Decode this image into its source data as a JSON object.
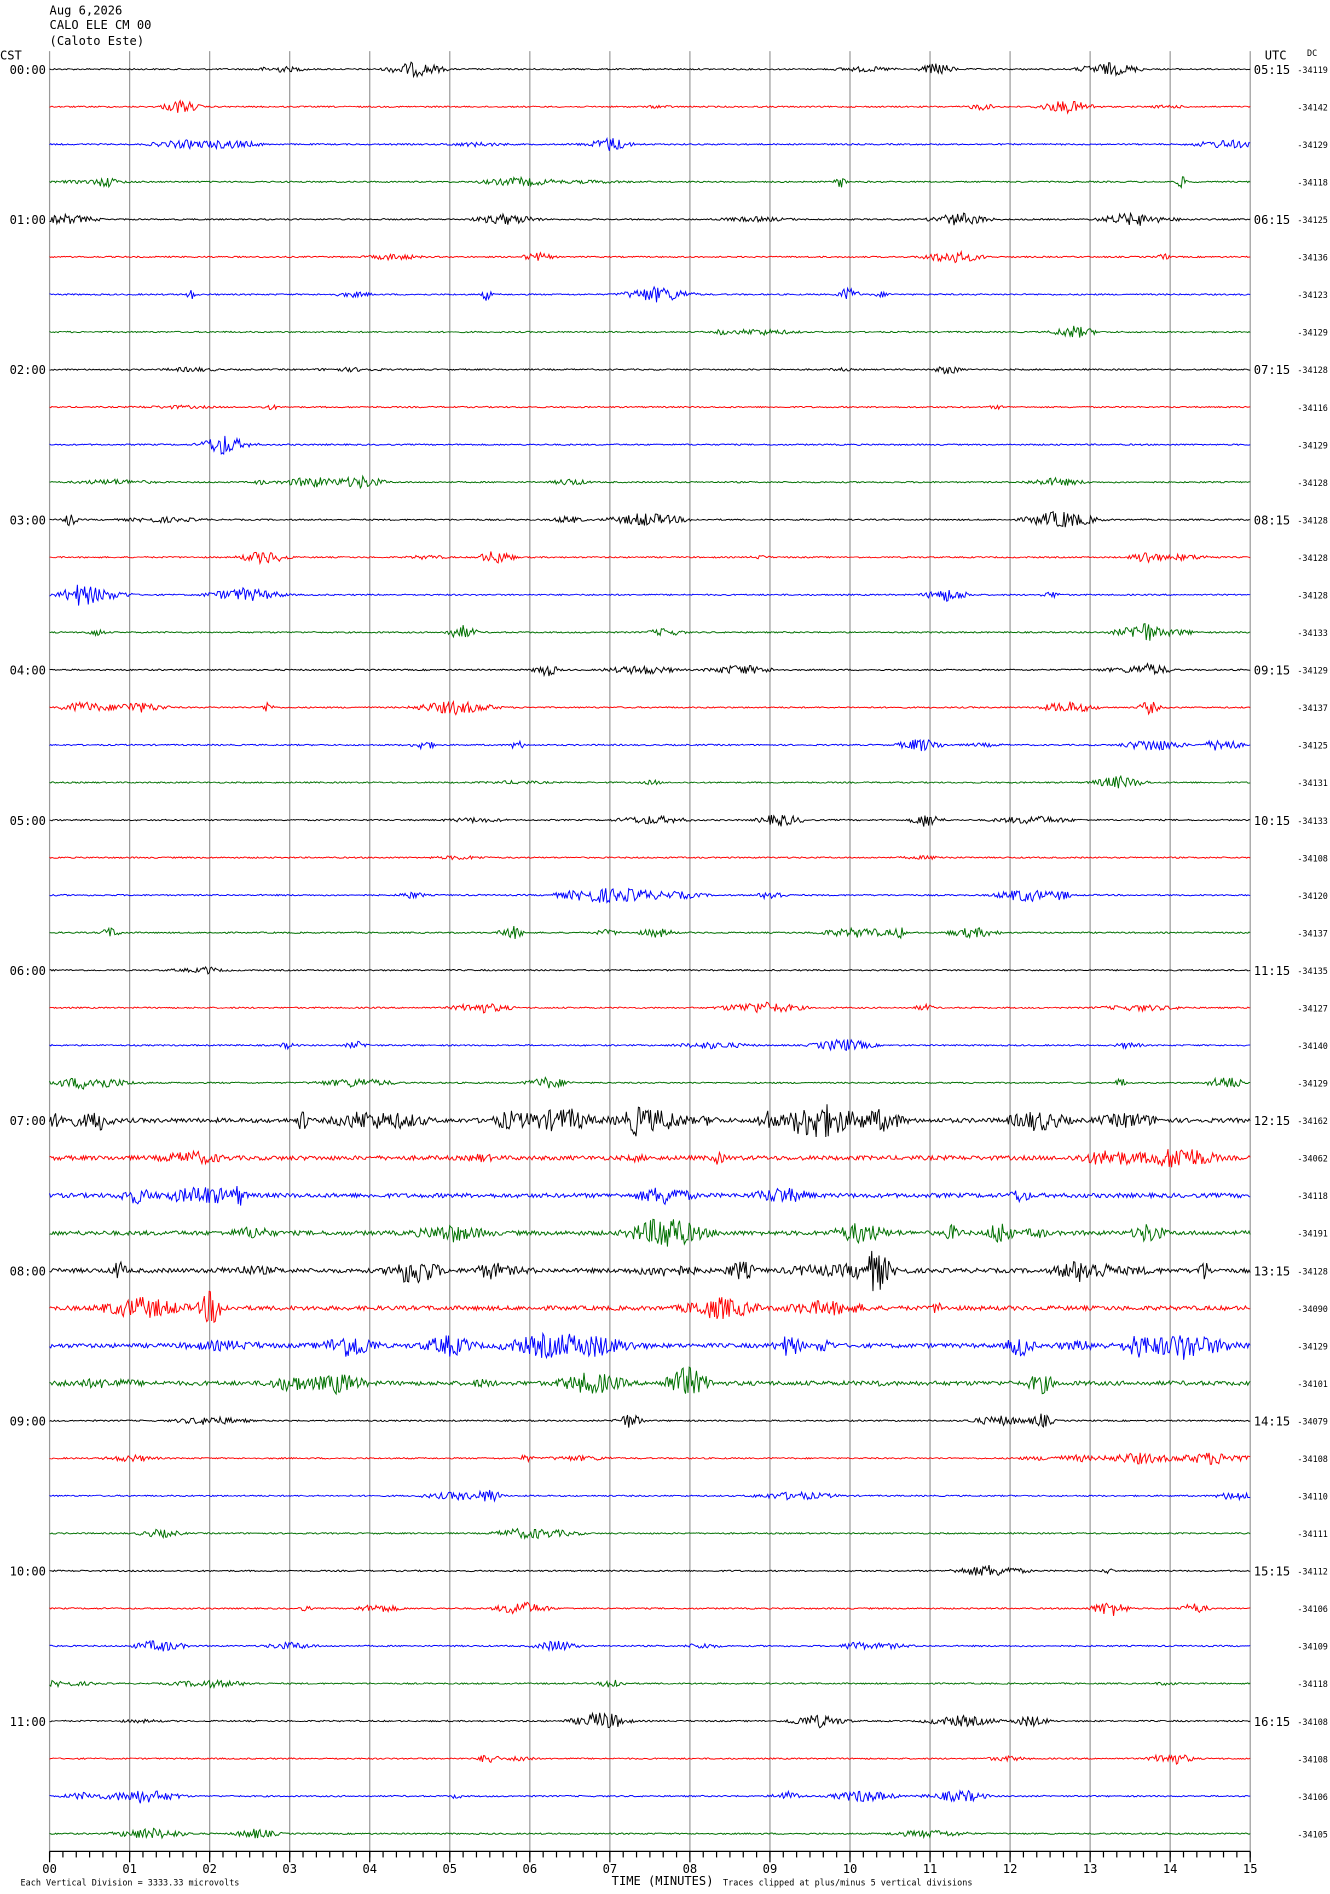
{
  "chart_data": {
    "type": "helicorder",
    "title_lines": [
      "Aug 6,2026",
      "CALO ELE CM 00",
      "(Caloto Este)"
    ],
    "left_axis_label": "CST",
    "right_axis_label": "UTC",
    "dc_label": "DC",
    "xlabel": "TIME (MINUTES)",
    "scale_note": "Each Vertical Division = 3333.33 microvolts",
    "clip_note": "Traces clipped at plus/minus 5 vertical divisions",
    "trace_colors": [
      "#000000",
      "#ff0000",
      "#0000ff",
      "#007000"
    ],
    "xlim": [
      0,
      15
    ],
    "xticks": [
      {
        "value": 0,
        "label": "00"
      },
      {
        "value": 1,
        "label": "01"
      },
      {
        "value": 2,
        "label": "02"
      },
      {
        "value": 3,
        "label": "03"
      },
      {
        "value": 4,
        "label": "04"
      },
      {
        "value": 5,
        "label": "05"
      },
      {
        "value": 6,
        "label": "06"
      },
      {
        "value": 7,
        "label": "07"
      },
      {
        "value": 8,
        "label": "08"
      },
      {
        "value": 9,
        "label": "09"
      },
      10,
      11,
      12,
      13,
      14,
      15
    ],
    "hour_labels": [
      {
        "cst": "00:00",
        "utc": "05:15"
      },
      {
        "cst": "01:00",
        "utc": "06:15"
      },
      {
        "cst": "02:00",
        "utc": "07:15"
      },
      {
        "cst": "03:00",
        "utc": "08:15"
      },
      {
        "cst": "04:00",
        "utc": "09:15"
      },
      {
        "cst": "05:00",
        "utc": "10:15"
      },
      {
        "cst": "06:00",
        "utc": "11:15"
      },
      {
        "cst": "07:00",
        "utc": "12:15"
      },
      {
        "cst": "08:00",
        "utc": "13:15"
      },
      {
        "cst": "09:00",
        "utc": "14:15"
      },
      {
        "cst": "10:00",
        "utc": "15:15"
      },
      {
        "cst": "11:00",
        "utc": "16:15"
      }
    ],
    "dc_values": [
      "-34119",
      "-34142",
      "-34129",
      "-34118",
      "-34125",
      "-34136",
      "-34123",
      "-34129",
      "-34128",
      "-34116",
      "-34129",
      "-34128",
      "-34128",
      "-34128",
      "-34128",
      "-34133",
      "-34129",
      "-34137",
      "-34125",
      "-34131",
      "-34133",
      "-34108",
      "-34120",
      "-34137",
      "-34135",
      "-34127",
      "-34140",
      "-34129",
      "-34162",
      "-34062",
      "-34118",
      "-34191",
      "-34128",
      "-34090",
      "-34129",
      "-34101",
      "-34079",
      "-34108",
      "-34110",
      "-34111",
      "-34112",
      "-34106",
      "-34109",
      "-34118",
      "-34108",
      "-34108",
      "-34106",
      "-34105"
    ]
  }
}
